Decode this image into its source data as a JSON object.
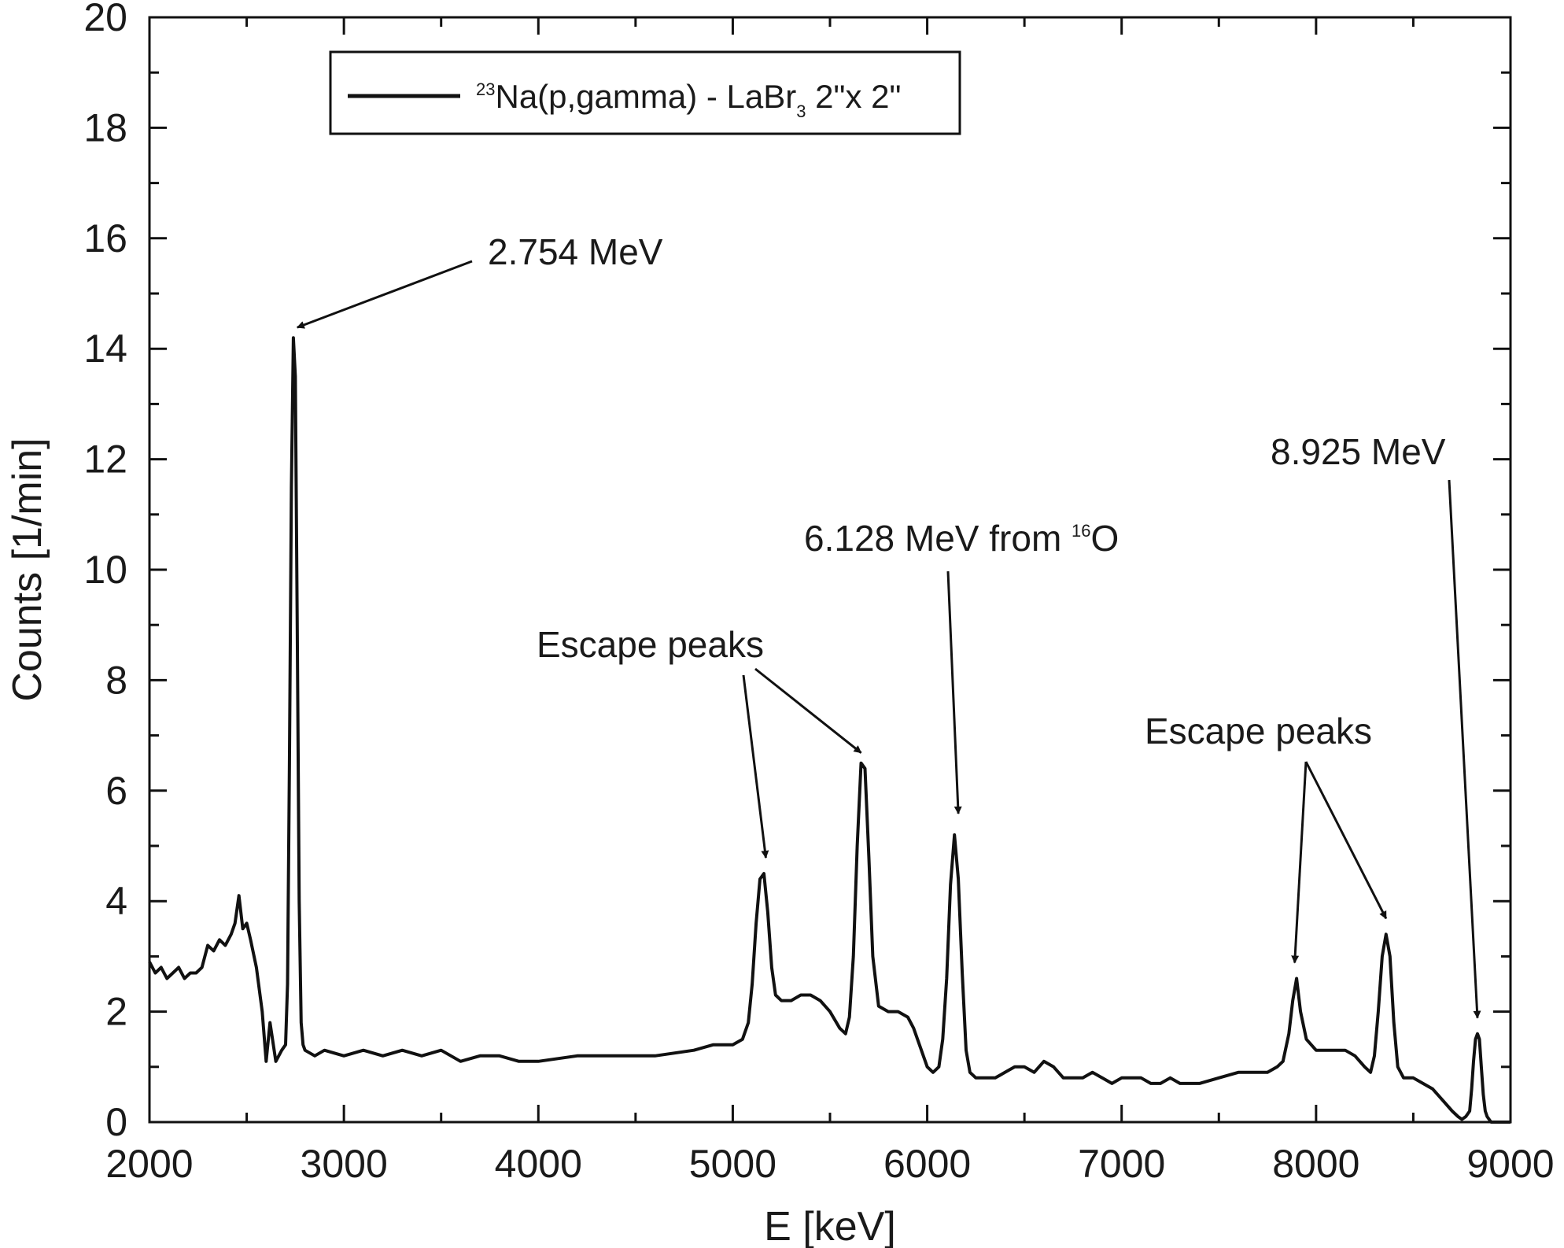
{
  "chart_data": {
    "type": "line",
    "title": "",
    "xlabel": "E [keV]",
    "ylabel": "Counts [1/min]",
    "xlim": [
      2000,
      9000
    ],
    "ylim": [
      0,
      20
    ],
    "x_ticks": [
      2000,
      3000,
      4000,
      5000,
      6000,
      7000,
      8000,
      9000
    ],
    "y_ticks": [
      0,
      2,
      4,
      6,
      8,
      10,
      12,
      14,
      16,
      18,
      20
    ],
    "grid": false,
    "legend": {
      "position": "top-left",
      "entries": [
        {
          "sup1": "23",
          "text1": "Na(p,gamma) -  LaBr",
          "sub": "3",
          "text2": " 2\"x 2\""
        }
      ]
    },
    "series": [
      {
        "name": "23Na(p,gamma) - LaBr3 2\"x 2\"",
        "color": "#111111",
        "x": [
          2000,
          2030,
          2060,
          2090,
          2120,
          2150,
          2180,
          2210,
          2240,
          2270,
          2300,
          2330,
          2360,
          2390,
          2420,
          2440,
          2460,
          2480,
          2500,
          2520,
          2550,
          2580,
          2600,
          2620,
          2650,
          2680,
          2700,
          2710,
          2720,
          2730,
          2740,
          2750,
          2760,
          2770,
          2780,
          2790,
          2800,
          2850,
          2900,
          3000,
          3100,
          3200,
          3300,
          3400,
          3500,
          3600,
          3700,
          3800,
          3900,
          4000,
          4200,
          4400,
          4600,
          4800,
          4900,
          5000,
          5050,
          5080,
          5100,
          5120,
          5140,
          5160,
          5180,
          5200,
          5220,
          5250,
          5300,
          5350,
          5400,
          5450,
          5500,
          5550,
          5580,
          5600,
          5620,
          5640,
          5660,
          5680,
          5700,
          5720,
          5750,
          5800,
          5850,
          5900,
          5930,
          5960,
          6000,
          6030,
          6060,
          6080,
          6100,
          6120,
          6140,
          6160,
          6180,
          6200,
          6220,
          6250,
          6300,
          6350,
          6400,
          6450,
          6500,
          6550,
          6600,
          6650,
          6700,
          6750,
          6800,
          6850,
          6900,
          6950,
          7000,
          7050,
          7100,
          7150,
          7200,
          7250,
          7300,
          7400,
          7500,
          7600,
          7700,
          7750,
          7800,
          7830,
          7860,
          7880,
          7900,
          7920,
          7950,
          8000,
          8050,
          8100,
          8150,
          8200,
          8250,
          8280,
          8300,
          8320,
          8340,
          8360,
          8380,
          8400,
          8420,
          8450,
          8500,
          8550,
          8600,
          8650,
          8700,
          8730,
          8750,
          8770,
          8790,
          8800,
          8810,
          8820,
          8830,
          8840,
          8850,
          8860,
          8870,
          8880,
          8900,
          8950,
          9000
        ],
        "y": [
          2.9,
          2.7,
          2.8,
          2.6,
          2.7,
          2.8,
          2.6,
          2.7,
          2.7,
          2.8,
          3.2,
          3.1,
          3.3,
          3.2,
          3.4,
          3.6,
          4.1,
          3.5,
          3.6,
          3.3,
          2.8,
          2.0,
          1.1,
          1.8,
          1.1,
          1.3,
          1.4,
          2.5,
          6.5,
          11.5,
          14.2,
          13.5,
          9.0,
          4.0,
          1.8,
          1.4,
          1.3,
          1.2,
          1.3,
          1.2,
          1.3,
          1.2,
          1.3,
          1.2,
          1.3,
          1.1,
          1.2,
          1.2,
          1.1,
          1.1,
          1.2,
          1.2,
          1.2,
          1.3,
          1.4,
          1.4,
          1.5,
          1.8,
          2.5,
          3.6,
          4.4,
          4.5,
          3.8,
          2.8,
          2.3,
          2.2,
          2.2,
          2.3,
          2.3,
          2.2,
          2.0,
          1.7,
          1.6,
          1.9,
          3.0,
          5.0,
          6.5,
          6.4,
          4.8,
          3.0,
          2.1,
          2.0,
          2.0,
          1.9,
          1.7,
          1.4,
          1.0,
          0.9,
          1.0,
          1.5,
          2.6,
          4.3,
          5.2,
          4.4,
          2.7,
          1.3,
          0.9,
          0.8,
          0.8,
          0.8,
          0.9,
          1.0,
          1.0,
          0.9,
          1.1,
          1.0,
          0.8,
          0.8,
          0.8,
          0.9,
          0.8,
          0.7,
          0.8,
          0.8,
          0.8,
          0.7,
          0.7,
          0.8,
          0.7,
          0.7,
          0.8,
          0.9,
          0.9,
          0.9,
          1.0,
          1.1,
          1.6,
          2.2,
          2.6,
          2.0,
          1.5,
          1.3,
          1.3,
          1.3,
          1.3,
          1.2,
          1.0,
          0.9,
          1.2,
          2.0,
          3.0,
          3.4,
          3.0,
          1.8,
          1.0,
          0.8,
          0.8,
          0.7,
          0.6,
          0.4,
          0.2,
          0.1,
          0.05,
          0.1,
          0.2,
          0.6,
          1.1,
          1.5,
          1.6,
          1.5,
          1.0,
          0.5,
          0.2,
          0.1,
          0.0,
          0.0,
          0.0
        ]
      }
    ],
    "annotations": [
      {
        "id": "a2754",
        "parts": [
          "2.754 MeV"
        ],
        "tip": [
          2760,
          14.3
        ]
      },
      {
        "id": "a6128",
        "parts": [
          "6.128 MeV  from  ",
          "16",
          "O"
        ],
        "tip": [
          6160,
          5.5
        ]
      },
      {
        "id": "a8925",
        "parts": [
          "8.925 MeV"
        ],
        "tip": [
          8830,
          1.8
        ]
      },
      {
        "id": "escape1",
        "parts": [
          "Escape peaks"
        ],
        "tips": [
          [
            5170,
            4.7
          ],
          [
            5660,
            6.6
          ]
        ]
      },
      {
        "id": "escape2",
        "parts": [
          "Escape peaks"
        ],
        "tips": [
          [
            7890,
            2.8
          ],
          [
            8360,
            3.6
          ]
        ]
      }
    ]
  }
}
